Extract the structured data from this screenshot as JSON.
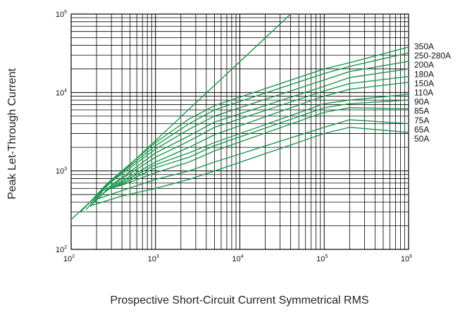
{
  "chart_data": {
    "type": "line",
    "title": "",
    "xlabel": "Prospective Short-Circuit Current Symmetrical RMS",
    "ylabel": "Peak Let-Through Current",
    "x_scale": "log",
    "y_scale": "log",
    "xlim": [
      100,
      1000000
    ],
    "ylim": [
      100,
      100000
    ],
    "grid": true,
    "x_ticks": [
      {
        "base": "10",
        "exp": "2"
      },
      {
        "base": "10",
        "exp": "3"
      },
      {
        "base": "10",
        "exp": "4"
      },
      {
        "base": "10",
        "exp": "5"
      },
      {
        "base": "10",
        "exp": "6"
      }
    ],
    "y_ticks": [
      {
        "base": "10",
        "exp": "2"
      },
      {
        "base": "10",
        "exp": "3"
      },
      {
        "base": "10",
        "exp": "4"
      },
      {
        "base": "10",
        "exp": "5"
      }
    ],
    "reference_line": {
      "points": [
        [
          100,
          240
        ],
        [
          40000,
          100000
        ]
      ]
    },
    "series": [
      {
        "name": "350A",
        "points": [
          [
            130,
            300
          ],
          [
            270,
            700
          ],
          [
            1000,
            2300
          ],
          [
            2500,
            4600
          ],
          [
            5000,
            6800
          ],
          [
            100000,
            20000
          ],
          [
            200000,
            24000
          ],
          [
            1000000,
            38000
          ]
        ]
      },
      {
        "name": "250-280A",
        "points": [
          [
            150,
            320
          ],
          [
            270,
            690
          ],
          [
            1000,
            2100
          ],
          [
            2500,
            4000
          ],
          [
            5000,
            6000
          ],
          [
            100000,
            17500
          ],
          [
            200000,
            21500
          ],
          [
            1000000,
            32000
          ]
        ]
      },
      {
        "name": "200A",
        "points": [
          [
            170,
            350
          ],
          [
            270,
            670
          ],
          [
            1000,
            1900
          ],
          [
            2500,
            3400
          ],
          [
            5000,
            5000
          ],
          [
            100000,
            14500
          ],
          [
            200000,
            18500
          ],
          [
            1000000,
            25000
          ]
        ]
      },
      {
        "name": "180A",
        "points": [
          [
            190,
            400
          ],
          [
            300,
            660
          ],
          [
            1000,
            1700
          ],
          [
            2500,
            2800
          ],
          [
            5000,
            4200
          ],
          [
            100000,
            12000
          ],
          [
            200000,
            15500
          ],
          [
            1000000,
            20000
          ]
        ]
      },
      {
        "name": "150A",
        "points": [
          [
            210,
            450
          ],
          [
            300,
            650
          ],
          [
            1000,
            1500
          ],
          [
            2500,
            2400
          ],
          [
            5000,
            3600
          ],
          [
            100000,
            10500
          ],
          [
            200000,
            13000
          ],
          [
            1000000,
            16000
          ]
        ]
      },
      {
        "name": "110A",
        "points": [
          [
            230,
            500
          ],
          [
            320,
            650
          ],
          [
            1000,
            1300
          ],
          [
            2500,
            2000
          ],
          [
            5000,
            2900
          ],
          [
            100000,
            9000
          ],
          [
            200000,
            11000
          ],
          [
            1000000,
            13500
          ]
        ]
      },
      {
        "name": "90A",
        "points": [
          [
            250,
            560
          ],
          [
            350,
            660
          ],
          [
            1000,
            1200
          ],
          [
            2500,
            1700
          ],
          [
            5000,
            2300
          ],
          [
            100000,
            7200
          ],
          [
            200000,
            8000
          ],
          [
            1000000,
            9500
          ]
        ]
      },
      {
        "name": "85A",
        "points": [
          [
            260,
            600
          ],
          [
            400,
            680
          ],
          [
            1000,
            1100
          ],
          [
            2500,
            1500
          ],
          [
            5000,
            2100
          ],
          [
            100000,
            6400
          ],
          [
            200000,
            7200
          ],
          [
            1000000,
            8000
          ]
        ]
      },
      {
        "name": "75A",
        "points": [
          [
            250,
            570
          ],
          [
            400,
            660
          ],
          [
            1000,
            950
          ],
          [
            2500,
            1300
          ],
          [
            5000,
            1800
          ],
          [
            100000,
            5600
          ],
          [
            200000,
            6400
          ],
          [
            1000000,
            6200
          ]
        ]
      },
      {
        "name": "65A",
        "points": [
          [
            180,
            420
          ],
          [
            400,
            560
          ],
          [
            1000,
            780
          ],
          [
            2500,
            1000
          ],
          [
            5000,
            1300
          ],
          [
            100000,
            3600
          ],
          [
            200000,
            4500
          ],
          [
            1000000,
            4000
          ]
        ]
      },
      {
        "name": "50A",
        "points": [
          [
            170,
            360
          ],
          [
            400,
            480
          ],
          [
            1000,
            600
          ],
          [
            2500,
            780
          ],
          [
            5000,
            1000
          ],
          [
            100000,
            3000
          ],
          [
            200000,
            3600
          ],
          [
            1000000,
            3100
          ]
        ]
      }
    ],
    "line_color": "#1a9a4c",
    "grid_color": "#000000"
  }
}
